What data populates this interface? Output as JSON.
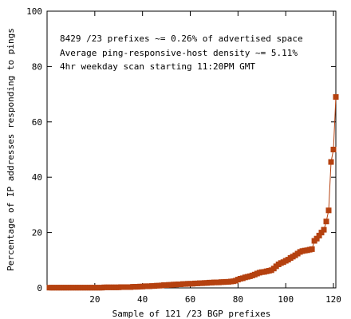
{
  "chart_data": {
    "type": "line",
    "title": "",
    "xlabel": "Sample of 121 /23 BGP prefixes",
    "ylabel": "Percentage of IP addresses responding to pings",
    "xlim": [
      0,
      121
    ],
    "ylim": [
      0,
      100
    ],
    "x_ticks": [
      20,
      40,
      60,
      80,
      100,
      120
    ],
    "y_ticks": [
      0,
      20,
      40,
      60,
      80,
      100
    ],
    "grid": false,
    "legend": "none",
    "marker": "square",
    "color": "#b5410f",
    "annotations": [
      "8429 /23 prefixes ~= 0.26% of advertised space",
      "Average ping-responsive-host density ~= 5.11%",
      "4hr weekday scan starting 11:20PM GMT"
    ],
    "series": [
      {
        "x": [
          1,
          2,
          3,
          4,
          5,
          6,
          7,
          8,
          9,
          10,
          11,
          12,
          13,
          14,
          15,
          16,
          17,
          18,
          19,
          20,
          21,
          22,
          23,
          24,
          25,
          26,
          27,
          28,
          29,
          30,
          31,
          32,
          33,
          34,
          35,
          36,
          37,
          38,
          39,
          40,
          41,
          42,
          43,
          44,
          45,
          46,
          47,
          48,
          49,
          50,
          51,
          52,
          53,
          54,
          55,
          56,
          57,
          58,
          59,
          60,
          61,
          62,
          63,
          64,
          65,
          66,
          67,
          68,
          69,
          70,
          71,
          72,
          73,
          74,
          75,
          76,
          77,
          78,
          79,
          80,
          81,
          82,
          83,
          84,
          85,
          86,
          87,
          88,
          89,
          90,
          91,
          92,
          93,
          94,
          95,
          96,
          97,
          98,
          99,
          100,
          101,
          102,
          103,
          104,
          105,
          106,
          107,
          108,
          109,
          110,
          111,
          112,
          113,
          114,
          115,
          116,
          117,
          118,
          119,
          120,
          121
        ],
        "y": [
          0.1,
          0.1,
          0.1,
          0.1,
          0.1,
          0.1,
          0.1,
          0.1,
          0.1,
          0.1,
          0.1,
          0.1,
          0.1,
          0.1,
          0.1,
          0.1,
          0.1,
          0.1,
          0.1,
          0.1,
          0.1,
          0.1,
          0.1,
          0.2,
          0.2,
          0.2,
          0.2,
          0.2,
          0.2,
          0.2,
          0.3,
          0.3,
          0.3,
          0.3,
          0.3,
          0.4,
          0.4,
          0.4,
          0.5,
          0.5,
          0.6,
          0.6,
          0.6,
          0.7,
          0.7,
          0.8,
          0.8,
          0.9,
          1.0,
          1.0,
          1.1,
          1.1,
          1.2,
          1.2,
          1.3,
          1.3,
          1.4,
          1.4,
          1.5,
          1.5,
          1.5,
          1.6,
          1.6,
          1.7,
          1.7,
          1.8,
          1.8,
          1.9,
          1.9,
          2.0,
          2.0,
          2.0,
          2.1,
          2.1,
          2.2,
          2.2,
          2.3,
          2.4,
          2.6,
          3.0,
          3.3,
          3.5,
          3.8,
          4.0,
          4.2,
          4.5,
          4.8,
          5.2,
          5.5,
          5.7,
          5.8,
          6.0,
          6.2,
          6.4,
          7.0,
          7.8,
          8.5,
          9.0,
          9.3,
          9.8,
          10.2,
          10.8,
          11.3,
          11.8,
          12.4,
          13.0,
          13.3,
          13.5,
          13.6,
          13.8,
          14.0,
          17.0,
          17.8,
          18.9,
          20.0,
          21.0,
          24.0,
          28.0,
          45.5,
          50.0,
          69.0
        ]
      }
    ]
  }
}
